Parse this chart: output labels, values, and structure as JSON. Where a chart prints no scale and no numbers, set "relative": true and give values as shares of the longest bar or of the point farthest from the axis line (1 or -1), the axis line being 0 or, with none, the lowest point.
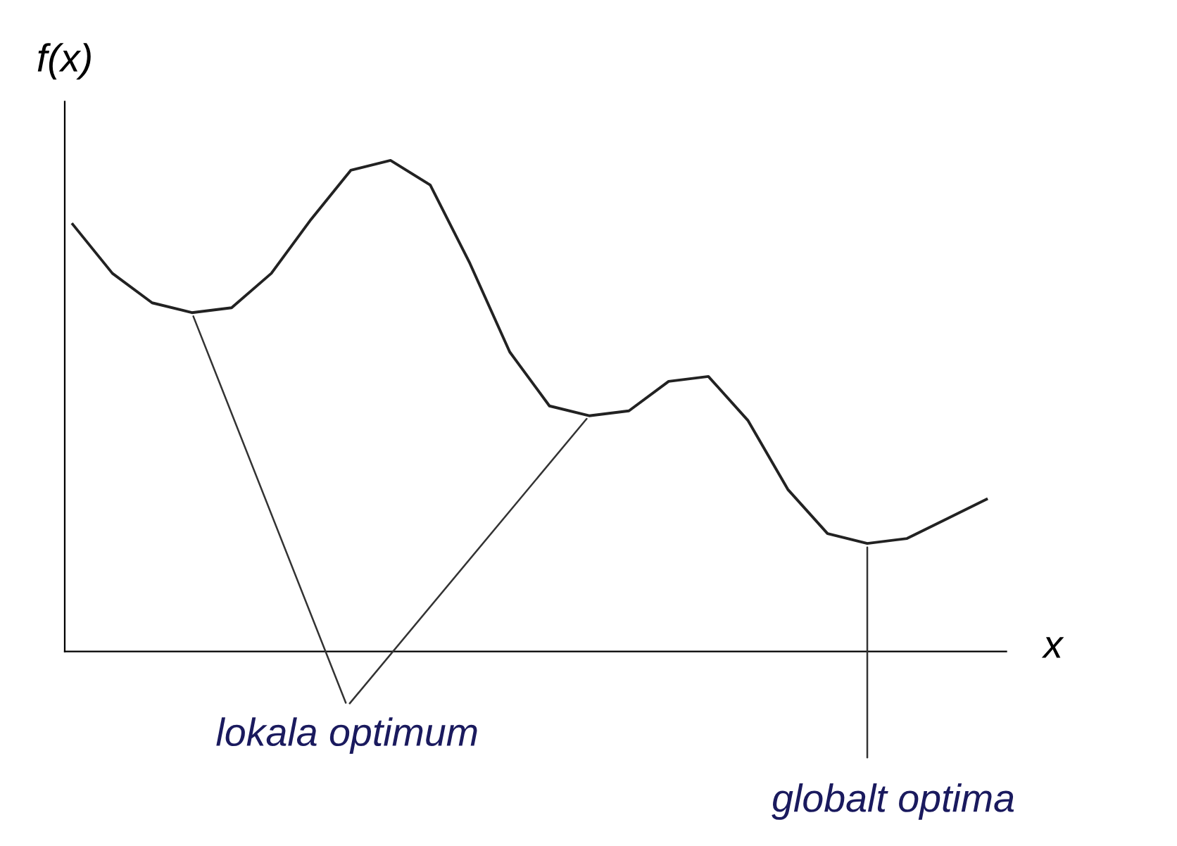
{
  "chart_data": {
    "type": "line",
    "relative": true,
    "xlabel": "x",
    "ylabel": "f(x)",
    "color": "#222222",
    "line_style": "solid",
    "marker": "none",
    "grid": false,
    "legend": false,
    "categories": [
      null,
      null,
      null,
      null,
      null,
      null,
      null,
      null,
      null,
      null,
      null,
      null,
      null,
      null,
      null,
      null,
      null,
      null,
      null,
      null,
      null,
      null,
      null,
      null
    ],
    "values": [
      0.87,
      0.77,
      0.71,
      0.69,
      0.7,
      0.77,
      0.88,
      0.98,
      1.0,
      0.95,
      0.79,
      0.61,
      0.5,
      0.48,
      0.49,
      0.55,
      0.56,
      0.47,
      0.33,
      0.24,
      0.22,
      0.23,
      0.27,
      0.31
    ],
    "annotations": [
      "lokala optimum",
      "globalt optima"
    ]
  }
}
